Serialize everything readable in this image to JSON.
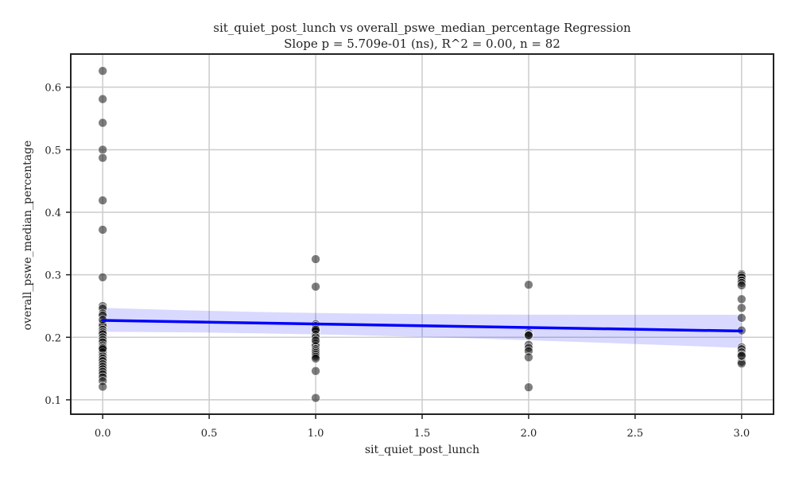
{
  "chart_data": {
    "type": "scatter",
    "title": "sit_quiet_post_lunch vs overall_pswe_median_percentage Regression",
    "subtitle": "Slope p = 5.709e-01 (ns), R^2 = 0.00, n = 82",
    "xlabel": "sit_quiet_post_lunch",
    "ylabel": "overall_pswe_median_percentage",
    "xlim": [
      -0.15,
      3.15
    ],
    "ylim": [
      0.077,
      0.653
    ],
    "xticks": [
      0.0,
      0.5,
      1.0,
      1.5,
      2.0,
      2.5,
      3.0
    ],
    "xtick_labels": [
      "0.0",
      "0.5",
      "1.0",
      "1.5",
      "2.0",
      "2.5",
      "3.0"
    ],
    "yticks": [
      0.1,
      0.2,
      0.3,
      0.4,
      0.5,
      0.6
    ],
    "ytick_labels": [
      "0.1",
      "0.2",
      "0.3",
      "0.4",
      "0.5",
      "0.6"
    ],
    "grid": true,
    "points": [
      [
        0,
        0.626
      ],
      [
        0,
        0.581
      ],
      [
        0,
        0.543
      ],
      [
        0,
        0.5
      ],
      [
        0,
        0.487
      ],
      [
        0,
        0.419
      ],
      [
        0,
        0.372
      ],
      [
        0,
        0.296
      ],
      [
        0,
        0.25
      ],
      [
        0,
        0.246
      ],
      [
        0,
        0.238
      ],
      [
        0,
        0.235
      ],
      [
        0,
        0.222
      ],
      [
        0,
        0.218
      ],
      [
        0,
        0.212
      ],
      [
        0,
        0.208
      ],
      [
        0,
        0.205
      ],
      [
        0,
        0.2
      ],
      [
        0,
        0.196
      ],
      [
        0,
        0.192
      ],
      [
        0,
        0.187
      ],
      [
        0,
        0.184
      ],
      [
        0,
        0.18
      ],
      [
        0,
        0.176
      ],
      [
        0,
        0.17
      ],
      [
        0,
        0.166
      ],
      [
        0,
        0.162
      ],
      [
        0,
        0.157
      ],
      [
        0,
        0.153
      ],
      [
        0,
        0.149
      ],
      [
        0,
        0.145
      ],
      [
        0,
        0.141
      ],
      [
        0,
        0.136
      ],
      [
        0,
        0.13
      ],
      [
        0,
        0.121
      ],
      [
        1,
        0.325
      ],
      [
        1,
        0.281
      ],
      [
        1,
        0.221
      ],
      [
        1,
        0.218
      ],
      [
        1,
        0.214
      ],
      [
        1,
        0.21
      ],
      [
        1,
        0.204
      ],
      [
        1,
        0.2
      ],
      [
        1,
        0.19
      ],
      [
        1,
        0.186
      ],
      [
        1,
        0.181
      ],
      [
        1,
        0.178
      ],
      [
        1,
        0.175
      ],
      [
        1,
        0.172
      ],
      [
        1,
        0.169
      ],
      [
        1,
        0.166
      ],
      [
        1,
        0.146
      ],
      [
        1,
        0.103
      ],
      [
        2,
        0.284
      ],
      [
        2,
        0.207
      ],
      [
        2,
        0.204
      ],
      [
        2,
        0.188
      ],
      [
        2,
        0.183
      ],
      [
        2,
        0.178
      ],
      [
        2,
        0.168
      ],
      [
        2,
        0.12
      ],
      [
        3,
        0.301
      ],
      [
        3,
        0.299
      ],
      [
        3,
        0.296
      ],
      [
        3,
        0.291
      ],
      [
        3,
        0.287
      ],
      [
        3,
        0.283
      ],
      [
        3,
        0.261
      ],
      [
        3,
        0.247
      ],
      [
        3,
        0.231
      ],
      [
        3,
        0.211
      ],
      [
        3,
        0.184
      ],
      [
        3,
        0.181
      ],
      [
        3,
        0.176
      ],
      [
        3,
        0.172
      ],
      [
        3,
        0.161
      ],
      [
        3,
        0.158
      ],
      [
        0,
        0.182
      ],
      [
        1,
        0.195
      ],
      [
        2,
        0.203
      ],
      [
        3,
        0.17
      ],
      [
        0,
        0.228
      ],
      [
        1,
        0.212
      ]
    ],
    "regression": {
      "x": [
        0,
        3
      ],
      "y": [
        0.227,
        0.21
      ],
      "ci_lower": [
        0.198,
        0.183
      ],
      "ci_upper": [
        0.259,
        0.236
      ],
      "line_color": "#0000ff",
      "band_color": "#0000ff"
    },
    "point_color": "#000000"
  }
}
